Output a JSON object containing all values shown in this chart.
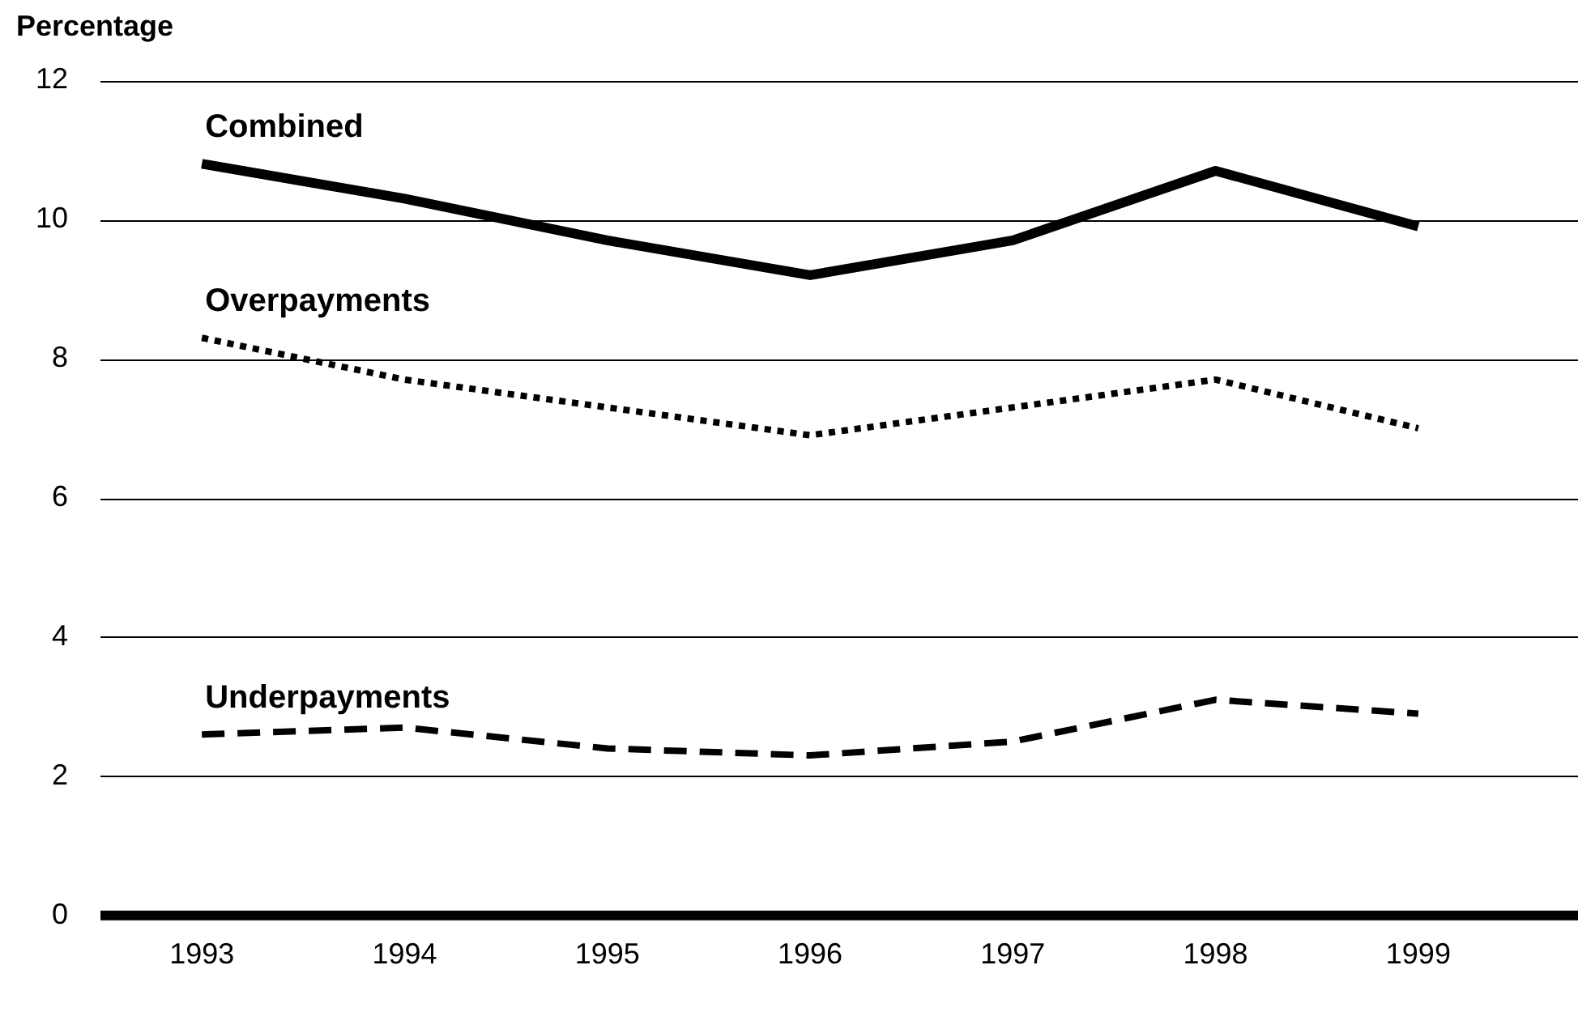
{
  "chart_data": {
    "type": "line",
    "ylabel": "Percentage",
    "categories": [
      "1993",
      "1994",
      "1995",
      "1996",
      "1997",
      "1998",
      "1999"
    ],
    "series": [
      {
        "name": "Combined",
        "color": "#000000",
        "line_style": "solid",
        "values": [
          10.8,
          10.3,
          9.7,
          9.2,
          9.7,
          10.7,
          9.9
        ]
      },
      {
        "name": "Overpayments",
        "color": "#000000",
        "line_style": "dotted",
        "values": [
          8.3,
          7.7,
          7.3,
          6.9,
          7.3,
          7.7,
          7.0
        ]
      },
      {
        "name": "Underpayments",
        "color": "#000000",
        "line_style": "dashed",
        "values": [
          2.6,
          2.7,
          2.4,
          2.3,
          2.5,
          3.1,
          2.9
        ]
      }
    ],
    "ylim": [
      0,
      12
    ],
    "yticks": [
      0,
      2,
      4,
      6,
      8,
      10,
      12
    ],
    "grid": "y",
    "legend": false,
    "marker": "none"
  }
}
